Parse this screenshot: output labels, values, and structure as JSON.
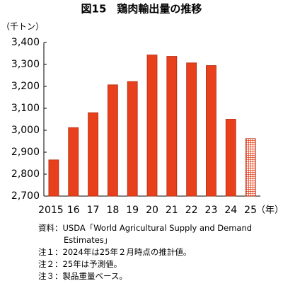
{
  "chart_data": {
    "type": "bar",
    "title": "図15　鶏肉輸出量の推移",
    "y_unit": "（千トン）",
    "x_unit": "（年）",
    "categories": [
      "2015",
      "16",
      "17",
      "18",
      "19",
      "20",
      "21",
      "22",
      "23",
      "24",
      "25"
    ],
    "values": [
      2865,
      3012,
      3080,
      3207,
      3222,
      3343,
      3337,
      3307,
      3295,
      3050,
      2962
    ],
    "styles": [
      "solid",
      "solid",
      "solid",
      "solid",
      "solid",
      "solid",
      "solid",
      "solid",
      "solid",
      "solid",
      "hatched"
    ],
    "color": "#e8401c",
    "ylim": [
      2700,
      3400
    ],
    "yticks": [
      {
        "value": 2700,
        "label": "2,700"
      },
      {
        "value": 2800,
        "label": "2,800"
      },
      {
        "value": 2900,
        "label": "2,900"
      },
      {
        "value": 3000,
        "label": "3,000"
      },
      {
        "value": 3100,
        "label": "3,100"
      },
      {
        "value": 3200,
        "label": "3,200"
      },
      {
        "value": 3300,
        "label": "3,300"
      },
      {
        "value": 3400,
        "label": "3,400"
      }
    ],
    "grid": false,
    "notes": [
      "資料：USDA「World Agricultural Supply and Demand",
      "Estimates」",
      "注１：2024年は25年２月時点の推計値。",
      "注２：25年は予測値。",
      "注３：製品重量ベース。"
    ]
  }
}
